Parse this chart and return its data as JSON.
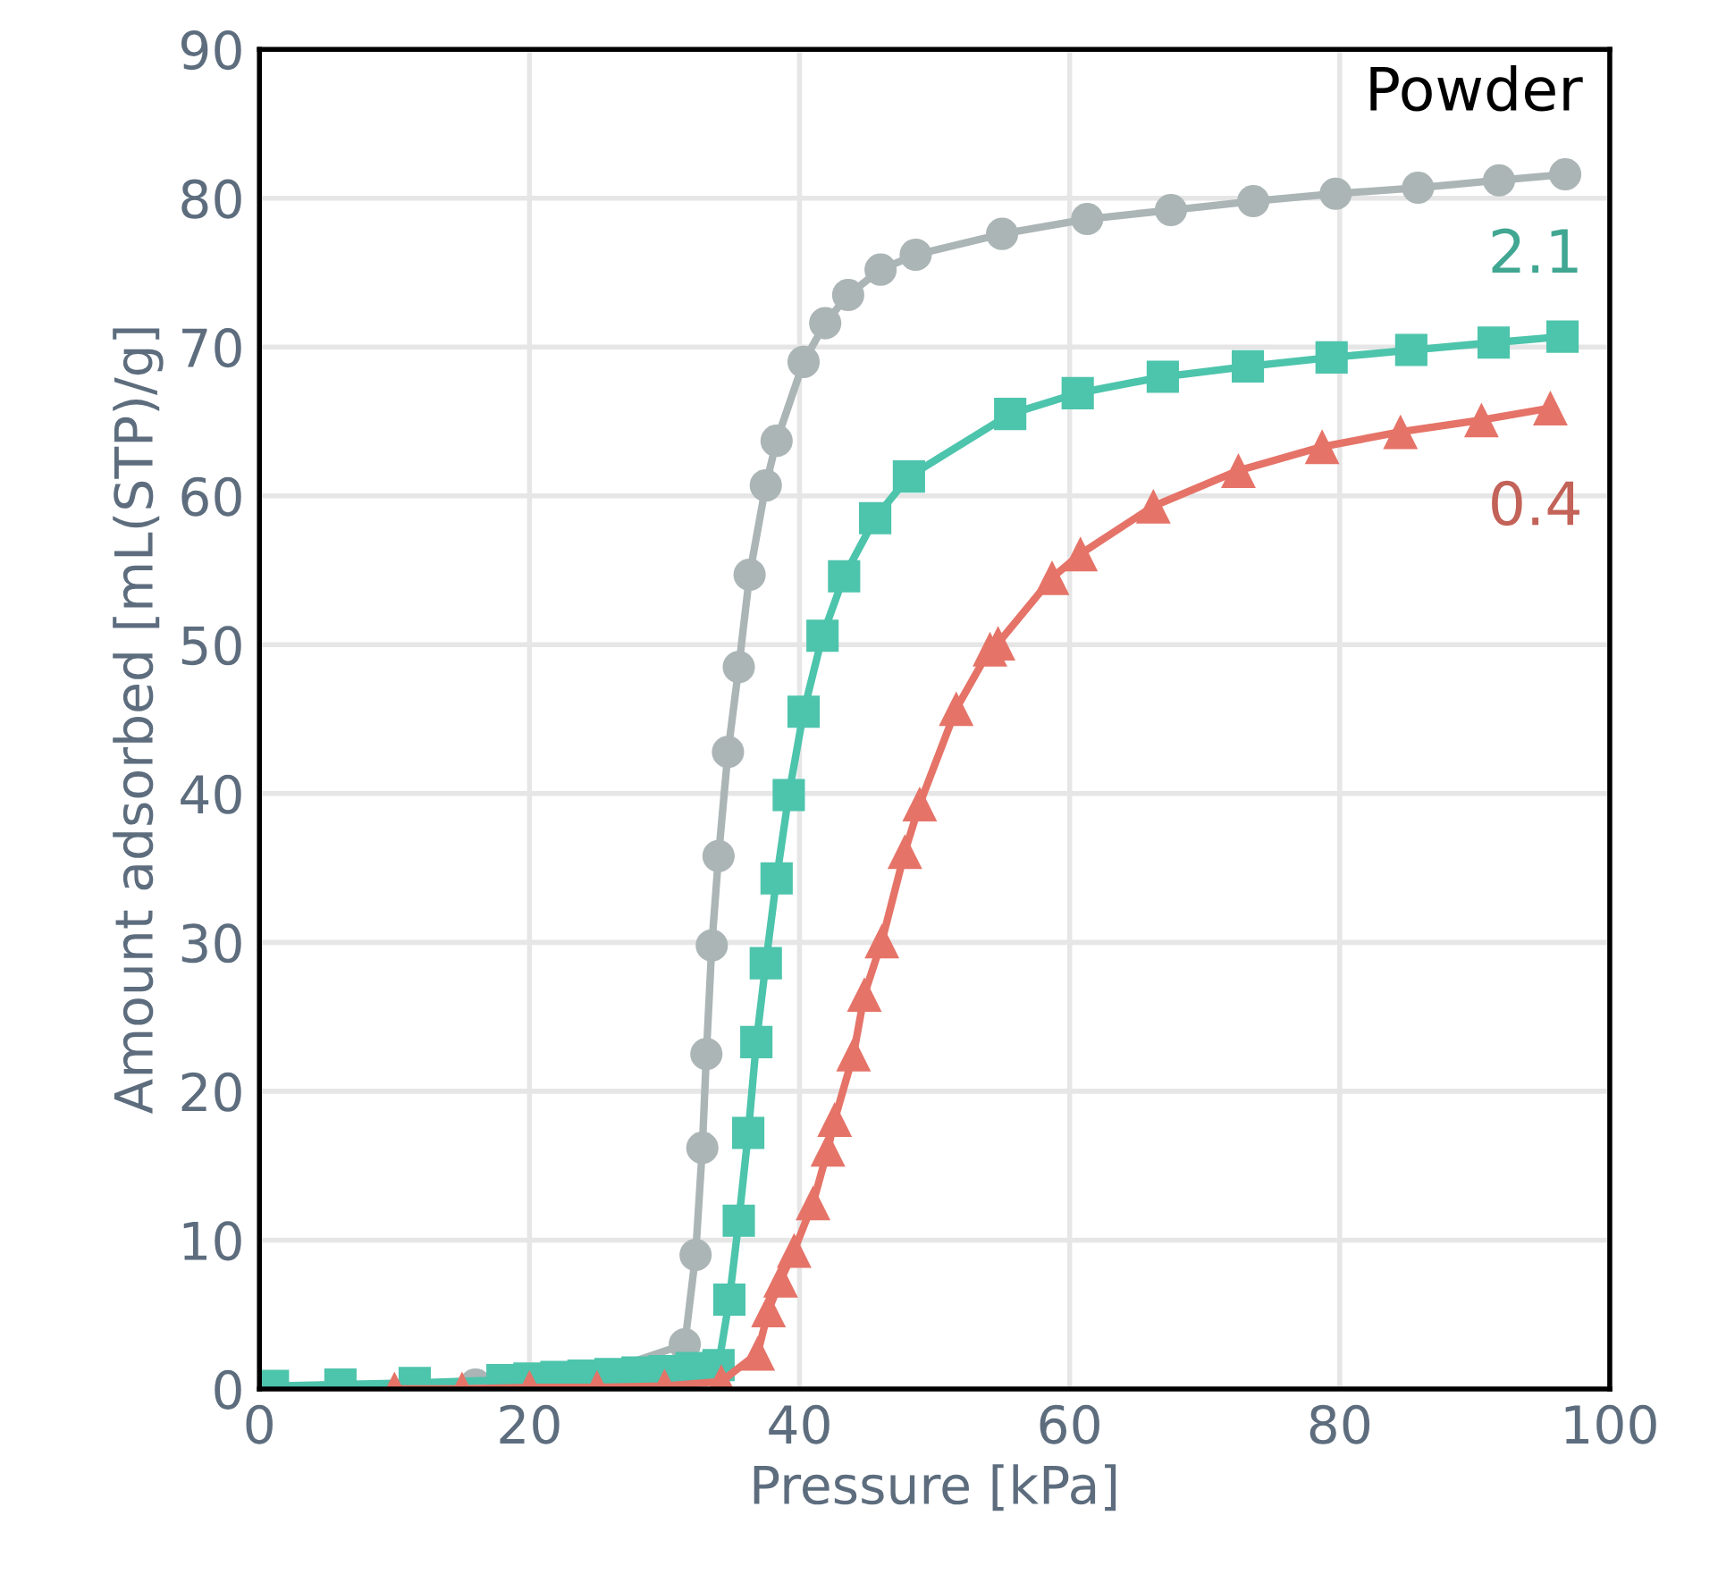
{
  "chart_data": {
    "type": "line",
    "xlabel": "Pressure [kPa]",
    "ylabel": "Amount adsorbed [mL(STP)/g]",
    "xlim": [
      0,
      100
    ],
    "xticks": [
      0,
      20,
      40,
      60,
      80,
      100
    ],
    "ylim": [
      0,
      90
    ],
    "yticks": [
      0,
      10,
      20,
      30,
      40,
      50,
      60,
      70,
      80,
      90
    ],
    "grid": true,
    "legend": false,
    "line_style": "solid",
    "series": [
      {
        "name": "Powder",
        "color": "#abb5b5",
        "marker": "circle",
        "x": [
          1,
          6,
          11,
          16,
          20,
          24,
          28,
          30,
          31.5,
          32.3,
          32.8,
          33.1,
          33.5,
          34.0,
          34.7,
          35.5,
          36.3,
          37.5,
          38.3,
          40.3,
          41.9,
          43.6,
          46.0,
          48.6,
          55.0,
          61.3,
          67.5,
          73.6,
          79.7,
          85.8,
          91.8,
          96.7
        ],
        "values": [
          0,
          null,
          null,
          0.3,
          null,
          0.7,
          null,
          null,
          3.0,
          9.0,
          16.2,
          22.5,
          29.8,
          35.8,
          42.8,
          48.5,
          54.7,
          60.7,
          63.7,
          69.0,
          71.6,
          73.5,
          75.2,
          76.2,
          77.6,
          78.6,
          79.2,
          79.8,
          80.3,
          80.7,
          81.2,
          81.6
        ]
      },
      {
        "name": "2.1",
        "color": "#4dc4ac",
        "marker": "square",
        "x": [
          1,
          6,
          11.5,
          18,
          20,
          22,
          24,
          26,
          28,
          30,
          32,
          34,
          34.8,
          35.5,
          36.2,
          36.8,
          37.5,
          38.3,
          39.2,
          40.3,
          41.7,
          43.3,
          45.6,
          48.1,
          55.6,
          60.6,
          66.9,
          73.2,
          79.4,
          85.3,
          91.4,
          96.5
        ],
        "values": [
          0.2,
          0.3,
          0.4,
          0.6,
          0.7,
          0.8,
          0.9,
          1.0,
          1.1,
          1.2,
          1.4,
          1.6,
          6.0,
          11.3,
          17.2,
          23.3,
          28.6,
          34.3,
          39.9,
          45.5,
          50.6,
          54.6,
          58.5,
          61.3,
          65.5,
          66.9,
          68.0,
          68.7,
          69.3,
          69.8,
          70.3,
          70.7
        ]
      },
      {
        "name": "0.4",
        "color": "#e57368",
        "marker": "triangle",
        "x": [
          10,
          15,
          20,
          25,
          30,
          34.2,
          36.9,
          37.7,
          38.6,
          39.6,
          41.0,
          42.1,
          42.6,
          44.0,
          44.8,
          46.1,
          47.8,
          48.9,
          51.6,
          54.1,
          54.7,
          58.7,
          60.8,
          66.2,
          72.5,
          78.7,
          84.5,
          90.5,
          95.6
        ],
        "values": [
          0,
          0,
          0.1,
          0.1,
          0.2,
          0.5,
          2.4,
          5.3,
          7.3,
          9.3,
          12.5,
          16.1,
          18.1,
          22.5,
          26.5,
          30.1,
          36.1,
          39.3,
          45.7,
          49.7,
          50.1,
          54.5,
          56.1,
          59.3,
          61.7,
          63.3,
          64.3,
          65.1,
          65.9
        ]
      }
    ]
  }
}
